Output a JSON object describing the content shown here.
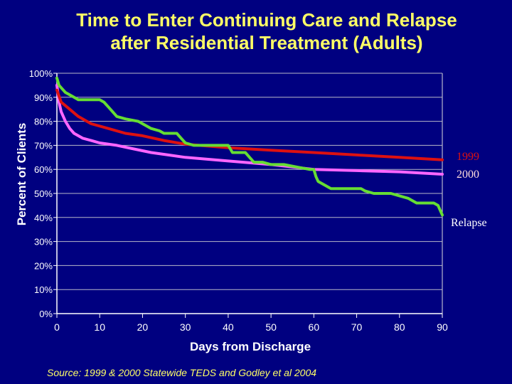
{
  "chart_data": {
    "type": "line",
    "title": [
      "Time to Enter Continuing Care and Relapse",
      "after Residential Treatment (Adults)"
    ],
    "xlabel": "Days from Discharge",
    "ylabel": "Percent of Clients",
    "xlim": [
      0,
      90
    ],
    "ylim": [
      0,
      100
    ],
    "x_ticks": [
      0,
      10,
      20,
      30,
      40,
      50,
      60,
      70,
      80,
      90
    ],
    "y_ticks": [
      "0%",
      "10%",
      "20%",
      "30%",
      "40%",
      "50%",
      "60%",
      "70%",
      "80%",
      "90%",
      "100%"
    ],
    "series": [
      {
        "name": "Relapse",
        "color": "#66dd33",
        "points": [
          [
            0,
            98
          ],
          [
            0.5,
            95
          ],
          [
            1,
            94
          ],
          [
            2,
            92
          ],
          [
            3,
            91
          ],
          [
            4,
            90
          ],
          [
            5,
            89
          ],
          [
            7,
            89
          ],
          [
            9,
            89
          ],
          [
            10,
            89
          ],
          [
            11,
            88
          ],
          [
            12,
            86
          ],
          [
            13,
            84
          ],
          [
            14,
            82
          ],
          [
            16,
            81
          ],
          [
            19,
            80
          ],
          [
            21,
            78
          ],
          [
            22,
            77
          ],
          [
            24,
            76
          ],
          [
            25,
            75
          ],
          [
            28,
            75
          ],
          [
            29,
            73
          ],
          [
            30,
            71
          ],
          [
            32,
            70
          ],
          [
            35,
            70
          ],
          [
            37,
            70
          ],
          [
            40,
            70
          ],
          [
            41,
            67
          ],
          [
            44,
            67
          ],
          [
            45,
            65
          ],
          [
            46,
            63
          ],
          [
            48,
            63
          ],
          [
            50,
            62
          ],
          [
            53,
            62
          ],
          [
            56,
            61
          ],
          [
            59,
            60
          ],
          [
            60,
            60
          ],
          [
            60.5,
            57
          ],
          [
            61,
            55
          ],
          [
            62,
            54
          ],
          [
            63,
            53
          ],
          [
            64,
            52
          ],
          [
            66,
            52
          ],
          [
            68,
            52
          ],
          [
            70,
            52
          ],
          [
            71,
            52
          ],
          [
            72,
            51
          ],
          [
            74,
            50
          ],
          [
            76,
            50
          ],
          [
            78,
            50
          ],
          [
            80,
            49
          ],
          [
            82,
            48
          ],
          [
            84,
            46
          ],
          [
            86,
            46
          ],
          [
            88,
            46
          ],
          [
            89,
            45
          ],
          [
            89.5,
            43
          ],
          [
            90,
            41
          ]
        ]
      },
      {
        "name": "1999",
        "color": "#dd1111",
        "points": [
          [
            0,
            93
          ],
          [
            1,
            88
          ],
          [
            3,
            85
          ],
          [
            5,
            82
          ],
          [
            8,
            79
          ],
          [
            12,
            77
          ],
          [
            16,
            75
          ],
          [
            20,
            74
          ],
          [
            25,
            72
          ],
          [
            30,
            70.5
          ],
          [
            40,
            69
          ],
          [
            50,
            68
          ],
          [
            60,
            67
          ],
          [
            70,
            66
          ],
          [
            80,
            65
          ],
          [
            90,
            64
          ]
        ]
      },
      {
        "name": "2000",
        "color": "#ff66ff",
        "points": [
          [
            0,
            95
          ],
          [
            0.5,
            88
          ],
          [
            1,
            84
          ],
          [
            2,
            80
          ],
          [
            3,
            77
          ],
          [
            4,
            75
          ],
          [
            6,
            73
          ],
          [
            8,
            72
          ],
          [
            10,
            71
          ],
          [
            14,
            70
          ],
          [
            18,
            68.5
          ],
          [
            22,
            67
          ],
          [
            26,
            66
          ],
          [
            30,
            65
          ],
          [
            40,
            63.5
          ],
          [
            50,
            62
          ],
          [
            60,
            60
          ],
          [
            70,
            59.5
          ],
          [
            80,
            59
          ],
          [
            90,
            58
          ]
        ]
      }
    ],
    "annotations": [
      {
        "text": "1999",
        "color": "#dd1111"
      },
      {
        "text": "2000",
        "color": "#ffdddd"
      },
      {
        "text": "Relapse",
        "color": "#ffffff"
      }
    ],
    "source": "Source: 1999 & 2000 Statewide TEDS and Godley et al 2004"
  }
}
